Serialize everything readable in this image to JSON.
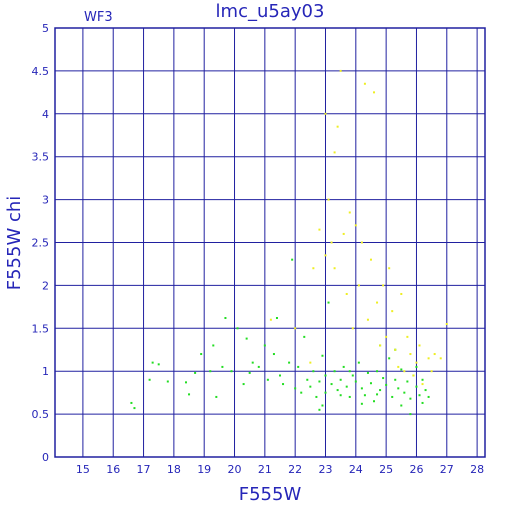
{
  "chart_data": {
    "type": "scatter",
    "title": "lmc_u5ay03",
    "annotation": "WF3",
    "x_label": "F555W",
    "y_label": "F555W chi",
    "xlim": [
      14.08,
      28.26
    ],
    "ylim": [
      0,
      5
    ],
    "xticks": [
      15,
      16,
      17,
      18,
      19,
      20,
      21,
      22,
      23,
      24,
      25,
      26,
      27,
      28
    ],
    "yticks": [
      0,
      0.5,
      1,
      1.5,
      2,
      2.5,
      3,
      3.5,
      4,
      4.5,
      5
    ],
    "grid": true,
    "series": [
      {
        "color": "#22dd22",
        "x": [
          16.6,
          16.7,
          17.3,
          17.5,
          17.2,
          17.8,
          18.4,
          18.5,
          18.7,
          18.9,
          19.2,
          19.3,
          19.4,
          19.6,
          19.7,
          19.9,
          20.1,
          20.3,
          20.4,
          20.5,
          20.6,
          20.8,
          21.0,
          21.1,
          21.3,
          21.5,
          21.6,
          21.8,
          21.9,
          22.0,
          22.1,
          22.2,
          22.3,
          22.4,
          22.5,
          22.6,
          22.7,
          22.8,
          22.9,
          23.0,
          23.0,
          23.1,
          23.2,
          23.3,
          23.4,
          23.5,
          23.6,
          23.7,
          23.8,
          23.9,
          24.0,
          24.1,
          24.2,
          24.3,
          24.4,
          24.5,
          24.6,
          24.7,
          24.8,
          24.9,
          25.0,
          25.1,
          25.2,
          25.3,
          25.4,
          25.5,
          25.6,
          25.7,
          25.8,
          25.9,
          26.0,
          26.1,
          26.2,
          26.3,
          26.4,
          25.8,
          25.3,
          24.8,
          26.0,
          23.8,
          22.9,
          24.2,
          25.5,
          26.2,
          23.5,
          24.7,
          21.4,
          22.8
        ],
        "y": [
          0.63,
          0.57,
          1.1,
          1.08,
          0.9,
          0.88,
          0.87,
          0.73,
          0.98,
          1.2,
          1.0,
          1.3,
          0.7,
          1.05,
          1.62,
          1.0,
          1.5,
          0.85,
          1.38,
          0.98,
          1.1,
          1.05,
          1.3,
          0.9,
          1.2,
          0.95,
          0.85,
          1.1,
          2.3,
          0.8,
          1.05,
          0.75,
          1.4,
          0.9,
          0.82,
          1.0,
          0.7,
          0.88,
          1.18,
          0.95,
          0.75,
          1.8,
          0.85,
          1.0,
          0.78,
          0.9,
          1.05,
          0.82,
          0.7,
          0.95,
          0.88,
          1.1,
          0.8,
          0.72,
          0.98,
          0.86,
          0.65,
          1.0,
          0.78,
          0.92,
          0.84,
          1.15,
          0.7,
          0.9,
          0.8,
          1.02,
          0.75,
          0.88,
          0.68,
          0.95,
          0.82,
          0.72,
          0.9,
          0.78,
          0.7,
          0.5,
          1.25,
          1.3,
          1.05,
          1.0,
          0.6,
          0.62,
          0.6,
          0.63,
          0.72,
          0.73,
          1.62,
          0.55
        ]
      },
      {
        "color": "#eeee22",
        "x": [
          21.2,
          22.0,
          22.5,
          22.6,
          22.8,
          23.0,
          23.0,
          23.1,
          23.2,
          23.3,
          23.4,
          23.5,
          23.6,
          23.7,
          23.9,
          24.0,
          24.1,
          24.2,
          24.3,
          24.4,
          24.5,
          24.6,
          24.7,
          24.8,
          24.9,
          25.0,
          25.1,
          25.2,
          25.3,
          25.4,
          25.5,
          25.6,
          25.7,
          25.8,
          25.9,
          26.0,
          26.1,
          26.2,
          26.4,
          26.6,
          26.8,
          27.0,
          26.5,
          23.8,
          23.3
        ],
        "y": [
          1.6,
          1.5,
          1.1,
          2.2,
          2.65,
          2.35,
          4.0,
          3.0,
          2.5,
          2.2,
          3.85,
          4.5,
          2.6,
          1.9,
          1.5,
          2.7,
          2.0,
          2.5,
          4.35,
          1.6,
          2.3,
          4.25,
          1.8,
          1.3,
          2.0,
          1.4,
          2.2,
          1.7,
          1.25,
          1.05,
          1.9,
          1.0,
          1.4,
          1.2,
          0.95,
          1.1,
          1.3,
          0.85,
          1.15,
          1.2,
          1.15,
          1.55,
          1.0,
          2.85,
          3.55
        ]
      }
    ]
  }
}
